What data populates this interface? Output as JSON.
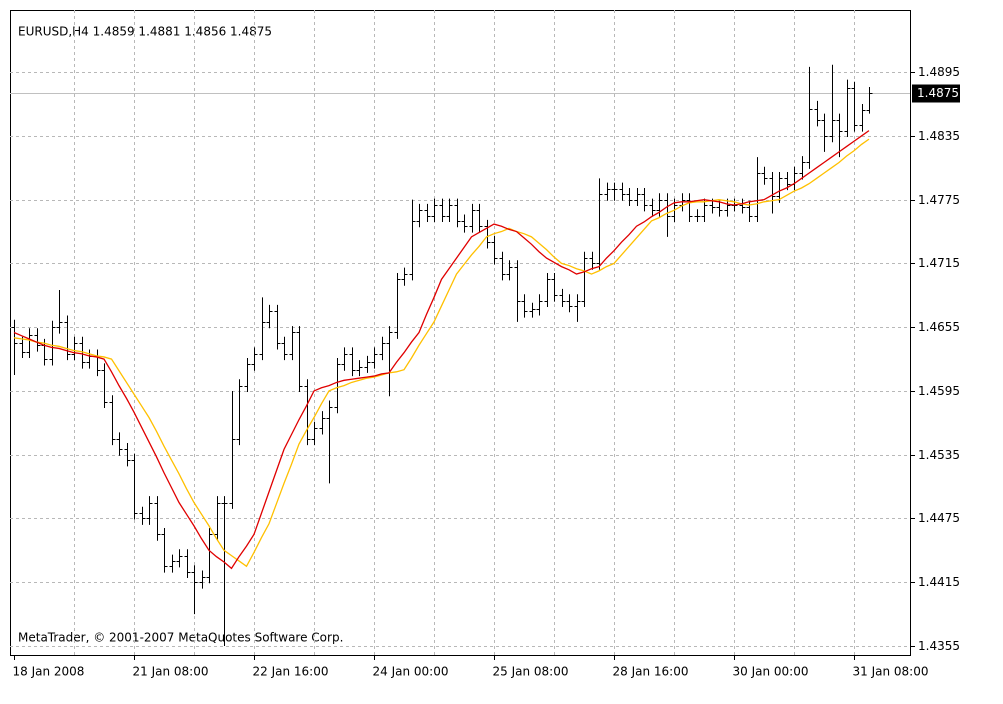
{
  "chart_data": {
    "type": "ohlc",
    "title": "EURUSD,H4  1.4859 1.4881 1.4856 1.4875",
    "footer": "MetaTrader, © 2001-2007 MetaQuotes Software Corp.",
    "bid": 1.4875,
    "bar_color": "#000000",
    "grid": true,
    "ylim": [
      1.43465,
      1.49535
    ],
    "yticks": [
      1.4355,
      1.4415,
      1.4475,
      1.4535,
      1.4595,
      1.4655,
      1.4715,
      1.4775,
      1.4835,
      1.4895
    ],
    "categories": [
      "18 Jan 2008",
      null,
      null,
      null,
      null,
      null,
      null,
      null,
      null,
      null,
      null,
      null,
      null,
      null,
      null,
      null,
      "21 Jan 08:00",
      null,
      null,
      null,
      null,
      null,
      null,
      null,
      null,
      null,
      null,
      null,
      null,
      null,
      null,
      null,
      "22 Jan 16:00",
      null,
      null,
      null,
      null,
      null,
      null,
      null,
      null,
      null,
      null,
      null,
      null,
      null,
      null,
      null,
      "24 Jan 00:00",
      null,
      null,
      null,
      null,
      null,
      null,
      null,
      null,
      null,
      null,
      null,
      null,
      null,
      null,
      null,
      "25 Jan 08:00",
      null,
      null,
      null,
      null,
      null,
      null,
      null,
      null,
      null,
      null,
      null,
      null,
      null,
      null,
      null,
      "28 Jan 16:00",
      null,
      null,
      null,
      null,
      null,
      null,
      null,
      null,
      null,
      null,
      null,
      null,
      null,
      null,
      null,
      "30 Jan 00:00",
      null,
      null,
      null,
      null,
      null,
      null,
      null,
      null,
      null,
      null,
      null,
      null,
      null,
      null,
      null,
      "31 Jan 08:00",
      null,
      null
    ],
    "open": [
      1.4655,
      1.464,
      1.4632,
      1.4648,
      1.4638,
      1.4625,
      1.4655,
      1.466,
      1.463,
      1.464,
      1.4622,
      1.4628,
      1.4615,
      1.4585,
      1.455,
      1.454,
      1.453,
      1.448,
      1.4475,
      1.449,
      1.446,
      1.443,
      1.4435,
      1.444,
      1.4425,
      1.4415,
      1.442,
      1.446,
      1.449,
      1.449,
      1.455,
      1.46,
      1.462,
      1.463,
      1.466,
      1.467,
      1.464,
      1.463,
      1.465,
      1.46,
      1.455,
      1.456,
      1.457,
      1.458,
      1.462,
      1.463,
      1.4615,
      1.4618,
      1.4622,
      1.463,
      1.464,
      1.465,
      1.47,
      1.4705,
      1.4755,
      1.4765,
      1.476,
      1.477,
      1.476,
      1.477,
      1.4755,
      1.475,
      1.4765,
      1.475,
      1.4735,
      1.472,
      1.4705,
      1.4712,
      1.468,
      1.467,
      1.4672,
      1.468,
      1.47,
      1.4685,
      1.468,
      1.4675,
      1.468,
      1.472,
      1.4715,
      1.478,
      1.4785,
      1.4785,
      1.478,
      1.4775,
      1.478,
      1.477,
      1.4765,
      1.4775,
      1.476,
      1.477,
      1.4775,
      1.476,
      1.476,
      1.477,
      1.4768,
      1.4765,
      1.477,
      1.477,
      1.4768,
      1.476,
      1.48,
      1.4795,
      1.4778,
      1.4795,
      1.479,
      1.48,
      1.481,
      1.486,
      1.485,
      1.4835,
      1.485,
      1.484,
      1.488,
      1.4845,
      1.4859
    ],
    "high": [
      1.4662,
      1.4646,
      1.4654,
      1.4654,
      1.4644,
      1.4661,
      1.469,
      1.4666,
      1.4646,
      1.4646,
      1.4634,
      1.4634,
      1.4621,
      1.4591,
      1.4556,
      1.4546,
      1.4536,
      1.4486,
      1.4496,
      1.4496,
      1.4466,
      1.4441,
      1.4446,
      1.4446,
      1.4431,
      1.4426,
      1.4466,
      1.4496,
      1.4496,
      1.4595,
      1.4606,
      1.4626,
      1.4636,
      1.4683,
      1.4676,
      1.4676,
      1.4646,
      1.4656,
      1.4656,
      1.4606,
      1.4566,
      1.4576,
      1.4586,
      1.4626,
      1.4636,
      1.4636,
      1.4624,
      1.4628,
      1.4636,
      1.4646,
      1.4656,
      1.4706,
      1.4711,
      1.4775,
      1.4771,
      1.4771,
      1.4776,
      1.4776,
      1.4776,
      1.4776,
      1.4761,
      1.4771,
      1.4771,
      1.4756,
      1.4741,
      1.4726,
      1.4718,
      1.4718,
      1.4686,
      1.4678,
      1.4686,
      1.4706,
      1.4706,
      1.4691,
      1.4686,
      1.4686,
      1.4726,
      1.4726,
      1.4795,
      1.4791,
      1.4791,
      1.4791,
      1.4786,
      1.4786,
      1.4786,
      1.4776,
      1.4781,
      1.4781,
      1.4776,
      1.4781,
      1.4781,
      1.4766,
      1.4776,
      1.4776,
      1.4774,
      1.4776,
      1.4776,
      1.4776,
      1.4774,
      1.4815,
      1.4806,
      1.4801,
      1.4801,
      1.4801,
      1.4806,
      1.4816,
      1.49,
      1.4868,
      1.4856,
      1.4902,
      1.4856,
      1.4888,
      1.4886,
      1.4865,
      1.4881
    ],
    "low": [
      1.461,
      1.4626,
      1.4626,
      1.4632,
      1.4619,
      1.4619,
      1.4649,
      1.4624,
      1.4624,
      1.4616,
      1.4616,
      1.4609,
      1.4579,
      1.4544,
      1.4534,
      1.4524,
      1.4474,
      1.4469,
      1.4469,
      1.4454,
      1.4424,
      1.4424,
      1.4429,
      1.4419,
      1.4385,
      1.4409,
      1.4414,
      1.4454,
      1.4355,
      1.4484,
      1.4544,
      1.4594,
      1.4614,
      1.4624,
      1.4654,
      1.4634,
      1.4624,
      1.4624,
      1.4594,
      1.4544,
      1.4544,
      1.4554,
      1.4508,
      1.4574,
      1.4614,
      1.4609,
      1.4609,
      1.4612,
      1.4616,
      1.4624,
      1.459,
      1.4644,
      1.4694,
      1.4699,
      1.4749,
      1.4754,
      1.4754,
      1.4754,
      1.4754,
      1.4749,
      1.4744,
      1.4744,
      1.4744,
      1.4729,
      1.4714,
      1.4699,
      1.4699,
      1.466,
      1.4664,
      1.4664,
      1.4666,
      1.4674,
      1.4679,
      1.4674,
      1.4669,
      1.466,
      1.4674,
      1.4709,
      1.4709,
      1.4774,
      1.4774,
      1.4774,
      1.4769,
      1.4769,
      1.4764,
      1.4759,
      1.4759,
      1.474,
      1.4754,
      1.4764,
      1.4754,
      1.4754,
      1.4754,
      1.4762,
      1.4759,
      1.4759,
      1.4764,
      1.4762,
      1.4754,
      1.4754,
      1.4789,
      1.4762,
      1.4772,
      1.4784,
      1.4784,
      1.4794,
      1.4804,
      1.4844,
      1.482,
      1.4829,
      1.4815,
      1.4834,
      1.4839,
      1.4839,
      1.4856
    ],
    "close": [
      1.464,
      1.4632,
      1.4648,
      1.4638,
      1.4625,
      1.4655,
      1.466,
      1.463,
      1.464,
      1.4622,
      1.4628,
      1.4615,
      1.4585,
      1.455,
      1.454,
      1.453,
      1.448,
      1.4475,
      1.449,
      1.446,
      1.443,
      1.4435,
      1.444,
      1.4425,
      1.4415,
      1.442,
      1.446,
      1.449,
      1.449,
      1.455,
      1.46,
      1.462,
      1.463,
      1.466,
      1.467,
      1.464,
      1.463,
      1.465,
      1.46,
      1.455,
      1.456,
      1.457,
      1.458,
      1.462,
      1.463,
      1.4615,
      1.4618,
      1.4622,
      1.463,
      1.464,
      1.465,
      1.47,
      1.4705,
      1.4755,
      1.4765,
      1.476,
      1.477,
      1.476,
      1.477,
      1.4755,
      1.475,
      1.4765,
      1.475,
      1.4735,
      1.472,
      1.4705,
      1.4712,
      1.468,
      1.467,
      1.4672,
      1.468,
      1.47,
      1.4685,
      1.468,
      1.4675,
      1.468,
      1.472,
      1.4715,
      1.478,
      1.4785,
      1.4785,
      1.478,
      1.4775,
      1.478,
      1.477,
      1.4765,
      1.4775,
      1.476,
      1.477,
      1.4775,
      1.476,
      1.476,
      1.477,
      1.4768,
      1.4765,
      1.477,
      1.477,
      1.4768,
      1.476,
      1.48,
      1.4795,
      1.4778,
      1.4795,
      1.479,
      1.48,
      1.481,
      1.486,
      1.485,
      1.4835,
      1.485,
      1.484,
      1.488,
      1.4845,
      1.4859,
      1.4875
    ],
    "series": [
      {
        "color": "#ffc000",
        "values": [
          1.4645,
          1.4644,
          1.4643,
          1.4641,
          1.464,
          1.4638,
          1.4637,
          1.4635,
          1.4633,
          1.4632,
          1.463,
          1.4628,
          1.4627,
          1.4625,
          1.4614,
          1.4603,
          1.4592,
          1.4581,
          1.457,
          1.4557,
          1.4543,
          1.453,
          1.4517,
          1.4503,
          1.449,
          1.4479,
          1.4468,
          1.4456,
          1.4445,
          1.444,
          1.4435,
          1.443,
          1.4443,
          1.4457,
          1.447,
          1.4489,
          1.4508,
          1.4526,
          1.4545,
          1.4558,
          1.457,
          1.4583,
          1.4595,
          1.4598,
          1.46,
          1.4603,
          1.4605,
          1.4607,
          1.4608,
          1.461,
          1.4612,
          1.4613,
          1.4615,
          1.4626,
          1.4638,
          1.4649,
          1.466,
          1.4675,
          1.469,
          1.4705,
          1.4714,
          1.4723,
          1.4731,
          1.474,
          1.4743,
          1.4745,
          1.4748,
          1.4745,
          1.4743,
          1.474,
          1.4734,
          1.4728,
          1.4721,
          1.4715,
          1.4713,
          1.471,
          1.4708,
          1.4705,
          1.4708,
          1.4712,
          1.4715,
          1.4723,
          1.4731,
          1.4739,
          1.4747,
          1.4755,
          1.4758,
          1.4762,
          1.4765,
          1.4769,
          1.4772,
          1.4773,
          1.4773,
          1.4774,
          1.4775,
          1.4774,
          1.4773,
          1.4771,
          1.477,
          1.4771,
          1.4773,
          1.4774,
          1.4775,
          1.4779,
          1.4783,
          1.4786,
          1.479,
          1.4795,
          1.48,
          1.4805,
          1.481,
          1.4816,
          1.4821,
          1.4827,
          1.4832
        ]
      },
      {
        "color": "#e00000",
        "values": [
          1.465,
          1.4647,
          1.4644,
          1.4641,
          1.4638,
          1.4636,
          1.4635,
          1.4633,
          1.4631,
          1.463,
          1.4628,
          1.4627,
          1.4625,
          1.4613,
          1.46,
          1.4588,
          1.4575,
          1.4561,
          1.4547,
          1.4533,
          1.4518,
          1.4504,
          1.449,
          1.4479,
          1.4468,
          1.4456,
          1.4445,
          1.4439,
          1.4434,
          1.4428,
          1.4439,
          1.4449,
          1.446,
          1.448,
          1.45,
          1.452,
          1.454,
          1.4554,
          1.4568,
          1.4581,
          1.4595,
          1.4598,
          1.46,
          1.4603,
          1.4605,
          1.4606,
          1.4607,
          1.4608,
          1.4609,
          1.4611,
          1.4612,
          1.4622,
          1.4631,
          1.4641,
          1.465,
          1.4667,
          1.4683,
          1.47,
          1.471,
          1.472,
          1.473,
          1.474,
          1.4744,
          1.4748,
          1.4752,
          1.475,
          1.4747,
          1.4745,
          1.4739,
          1.4733,
          1.4726,
          1.472,
          1.4716,
          1.4712,
          1.4709,
          1.4705,
          1.4707,
          1.471,
          1.4712,
          1.472,
          1.4727,
          1.4735,
          1.4742,
          1.475,
          1.4754,
          1.4759,
          1.4763,
          1.4768,
          1.4772,
          1.4773,
          1.4773,
          1.4774,
          1.4775,
          1.4774,
          1.4773,
          1.4771,
          1.477,
          1.4771,
          1.4773,
          1.4774,
          1.4775,
          1.4779,
          1.4783,
          1.4786,
          1.479,
          1.4795,
          1.48,
          1.4805,
          1.481,
          1.4815,
          1.482,
          1.4825,
          1.483,
          1.4835,
          1.484
        ]
      }
    ]
  }
}
